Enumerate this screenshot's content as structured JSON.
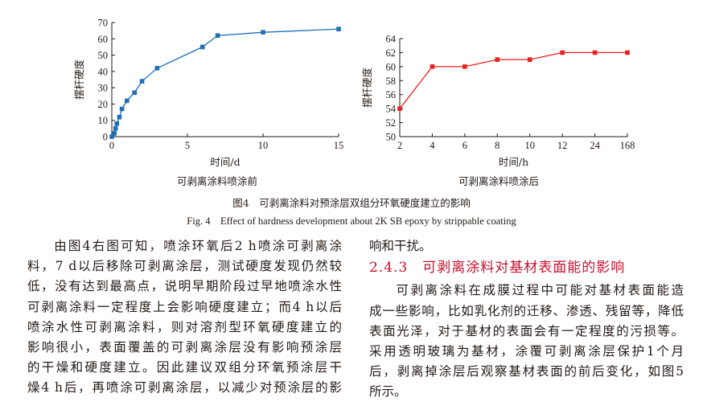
{
  "chart_data": [
    {
      "type": "line",
      "title": "",
      "xlabel": "时间/d",
      "ylabel": "摆杆硬度",
      "x": [
        0,
        0.17,
        0.25,
        0.33,
        0.5,
        0.67,
        1,
        1.5,
        2,
        3,
        6,
        7,
        10,
        15
      ],
      "series": [
        {
          "values": [
            0,
            2,
            5,
            8,
            12,
            17,
            22,
            27,
            34,
            42,
            55,
            62,
            64,
            66
          ]
        }
      ],
      "xticks": [
        0,
        5,
        10,
        15
      ],
      "yticks": [
        0,
        10,
        20,
        30,
        40,
        50,
        60,
        70
      ],
      "xlim": [
        0,
        15
      ],
      "ylim": [
        0,
        70
      ],
      "color": "#1f6fb5",
      "marker": "square"
    },
    {
      "type": "line",
      "title": "",
      "xlabel": "时间/h",
      "ylabel": "摆杆硬度",
      "categories": [
        "2",
        "4",
        "6",
        "8",
        "10",
        "12",
        "24",
        "168"
      ],
      "series": [
        {
          "values": [
            54,
            60,
            60,
            61,
            61,
            62,
            62,
            62
          ]
        }
      ],
      "yticks": [
        50,
        52,
        54,
        56,
        58,
        60,
        62,
        64
      ],
      "ylim": [
        50,
        64
      ],
      "color": "#e8201e",
      "marker": "square"
    }
  ],
  "captions": {
    "left_sub": "可剥离涂料喷涂前",
    "right_sub": "可剥离涂料喷涂后",
    "figure_cn": "图4　可剥离涂料对预涂层双组分环氧硬度建立的影响",
    "figure_en": "Fig. 4　Effect of hardness development about 2K SB epoxy by strippable coating"
  },
  "text": {
    "left_lines": [
      "由图4右图可知，喷涂环氧后2 h喷涂可剥离涂",
      "料，7 d以后移除可剥离涂层，测试硬度发现仍然较",
      "低，没有达到最高点，说明早期阶段过早地喷涂水性",
      "可剥离涂料一定程度上会影响硬度建立；而4 h以后",
      "喷涂水性可剥离涂料，则对溶剂型环氧硬度建立的",
      "影响很小，表面覆盖的可剥离涂层没有影响预涂层",
      "的干燥和硬度建立。因此建议双组分环氧预涂层干",
      "燥4 h后，再喷涂可剥离涂层，以减少对预涂层的影"
    ],
    "right_first": "响和干扰。",
    "section_heading": "2.4.3　可剥离涂料对基材表面能的影响",
    "right_lines": [
      "可剥离涂料在成膜过程中可能对基材表面能造",
      "成一些影响，比如乳化剂的迁移、渗透、残留等，降低",
      "表面光泽，对于基材的表面会有一定程度的污损等。",
      "采用透明玻璃为基材，涂覆可剥离涂层保护1个月",
      "后，剥离掉涂层后观察基材表面的前后变化，如图5",
      "所示。"
    ]
  }
}
